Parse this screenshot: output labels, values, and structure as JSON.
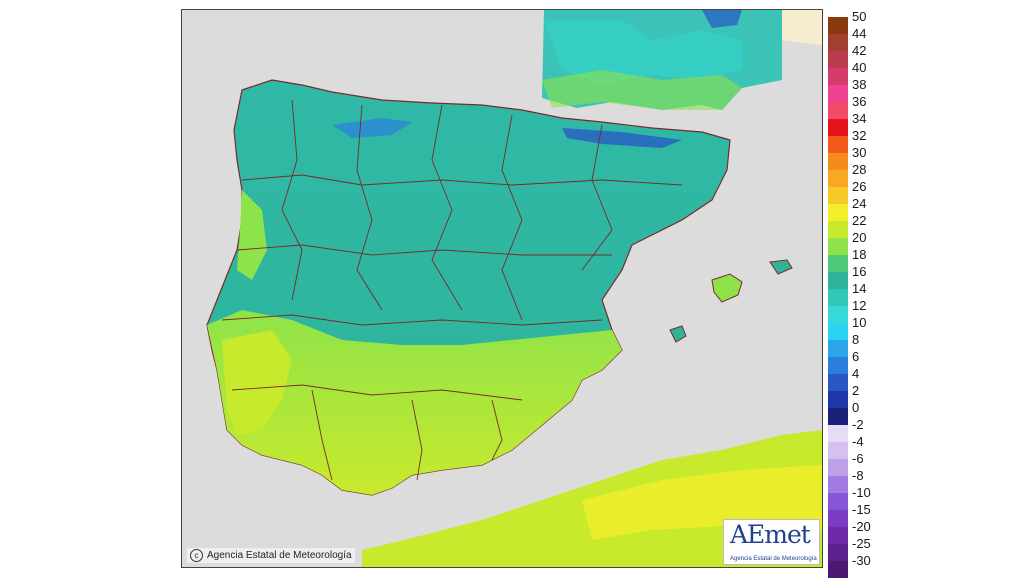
{
  "map": {
    "copyright": "Agencia Estatal de Meteorología",
    "logo": {
      "brand": "AEmet",
      "subtitle": "Agencia Estatal de Meteorología"
    }
  },
  "legend": {
    "items": [
      {
        "label": "50",
        "color": "#8b3a0f"
      },
      {
        "label": "44",
        "color": "#a3402d"
      },
      {
        "label": "42",
        "color": "#bb3b4e"
      },
      {
        "label": "40",
        "color": "#d63b6d"
      },
      {
        "label": "38",
        "color": "#f0408f"
      },
      {
        "label": "36",
        "color": "#f24a6a"
      },
      {
        "label": "34",
        "color": "#e8141c"
      },
      {
        "label": "32",
        "color": "#f25a1a"
      },
      {
        "label": "30",
        "color": "#f58b1c"
      },
      {
        "label": "28",
        "color": "#f8a824"
      },
      {
        "label": "26",
        "color": "#f6c828"
      },
      {
        "label": "24",
        "color": "#f2ee2a"
      },
      {
        "label": "22",
        "color": "#c8ea2c"
      },
      {
        "label": "20",
        "color": "#8ee34a"
      },
      {
        "label": "18",
        "color": "#4ec97a"
      },
      {
        "label": "16",
        "color": "#2fb39a"
      },
      {
        "label": "14",
        "color": "#33c7b9"
      },
      {
        "label": "12",
        "color": "#36d9d6"
      },
      {
        "label": "10",
        "color": "#2ad4f0"
      },
      {
        "label": "8",
        "color": "#2aa6e8"
      },
      {
        "label": "6",
        "color": "#2a7fdc"
      },
      {
        "label": "4",
        "color": "#2957c4"
      },
      {
        "label": "2",
        "color": "#1f36a6"
      },
      {
        "label": "0",
        "color": "#1a1f7a"
      },
      {
        "label": "-2",
        "color": "#e6dcf5"
      },
      {
        "label": "-4",
        "color": "#d4c1ef"
      },
      {
        "label": "-6",
        "color": "#bea0e8"
      },
      {
        "label": "-8",
        "color": "#a07ce0"
      },
      {
        "label": "-10",
        "color": "#8756d6"
      },
      {
        "label": "-15",
        "color": "#7a3cc2"
      },
      {
        "label": "-20",
        "color": "#6e2aa8"
      },
      {
        "label": "-25",
        "color": "#5e1f8e"
      },
      {
        "label": "-30",
        "color": "#4d1772"
      }
    ]
  }
}
